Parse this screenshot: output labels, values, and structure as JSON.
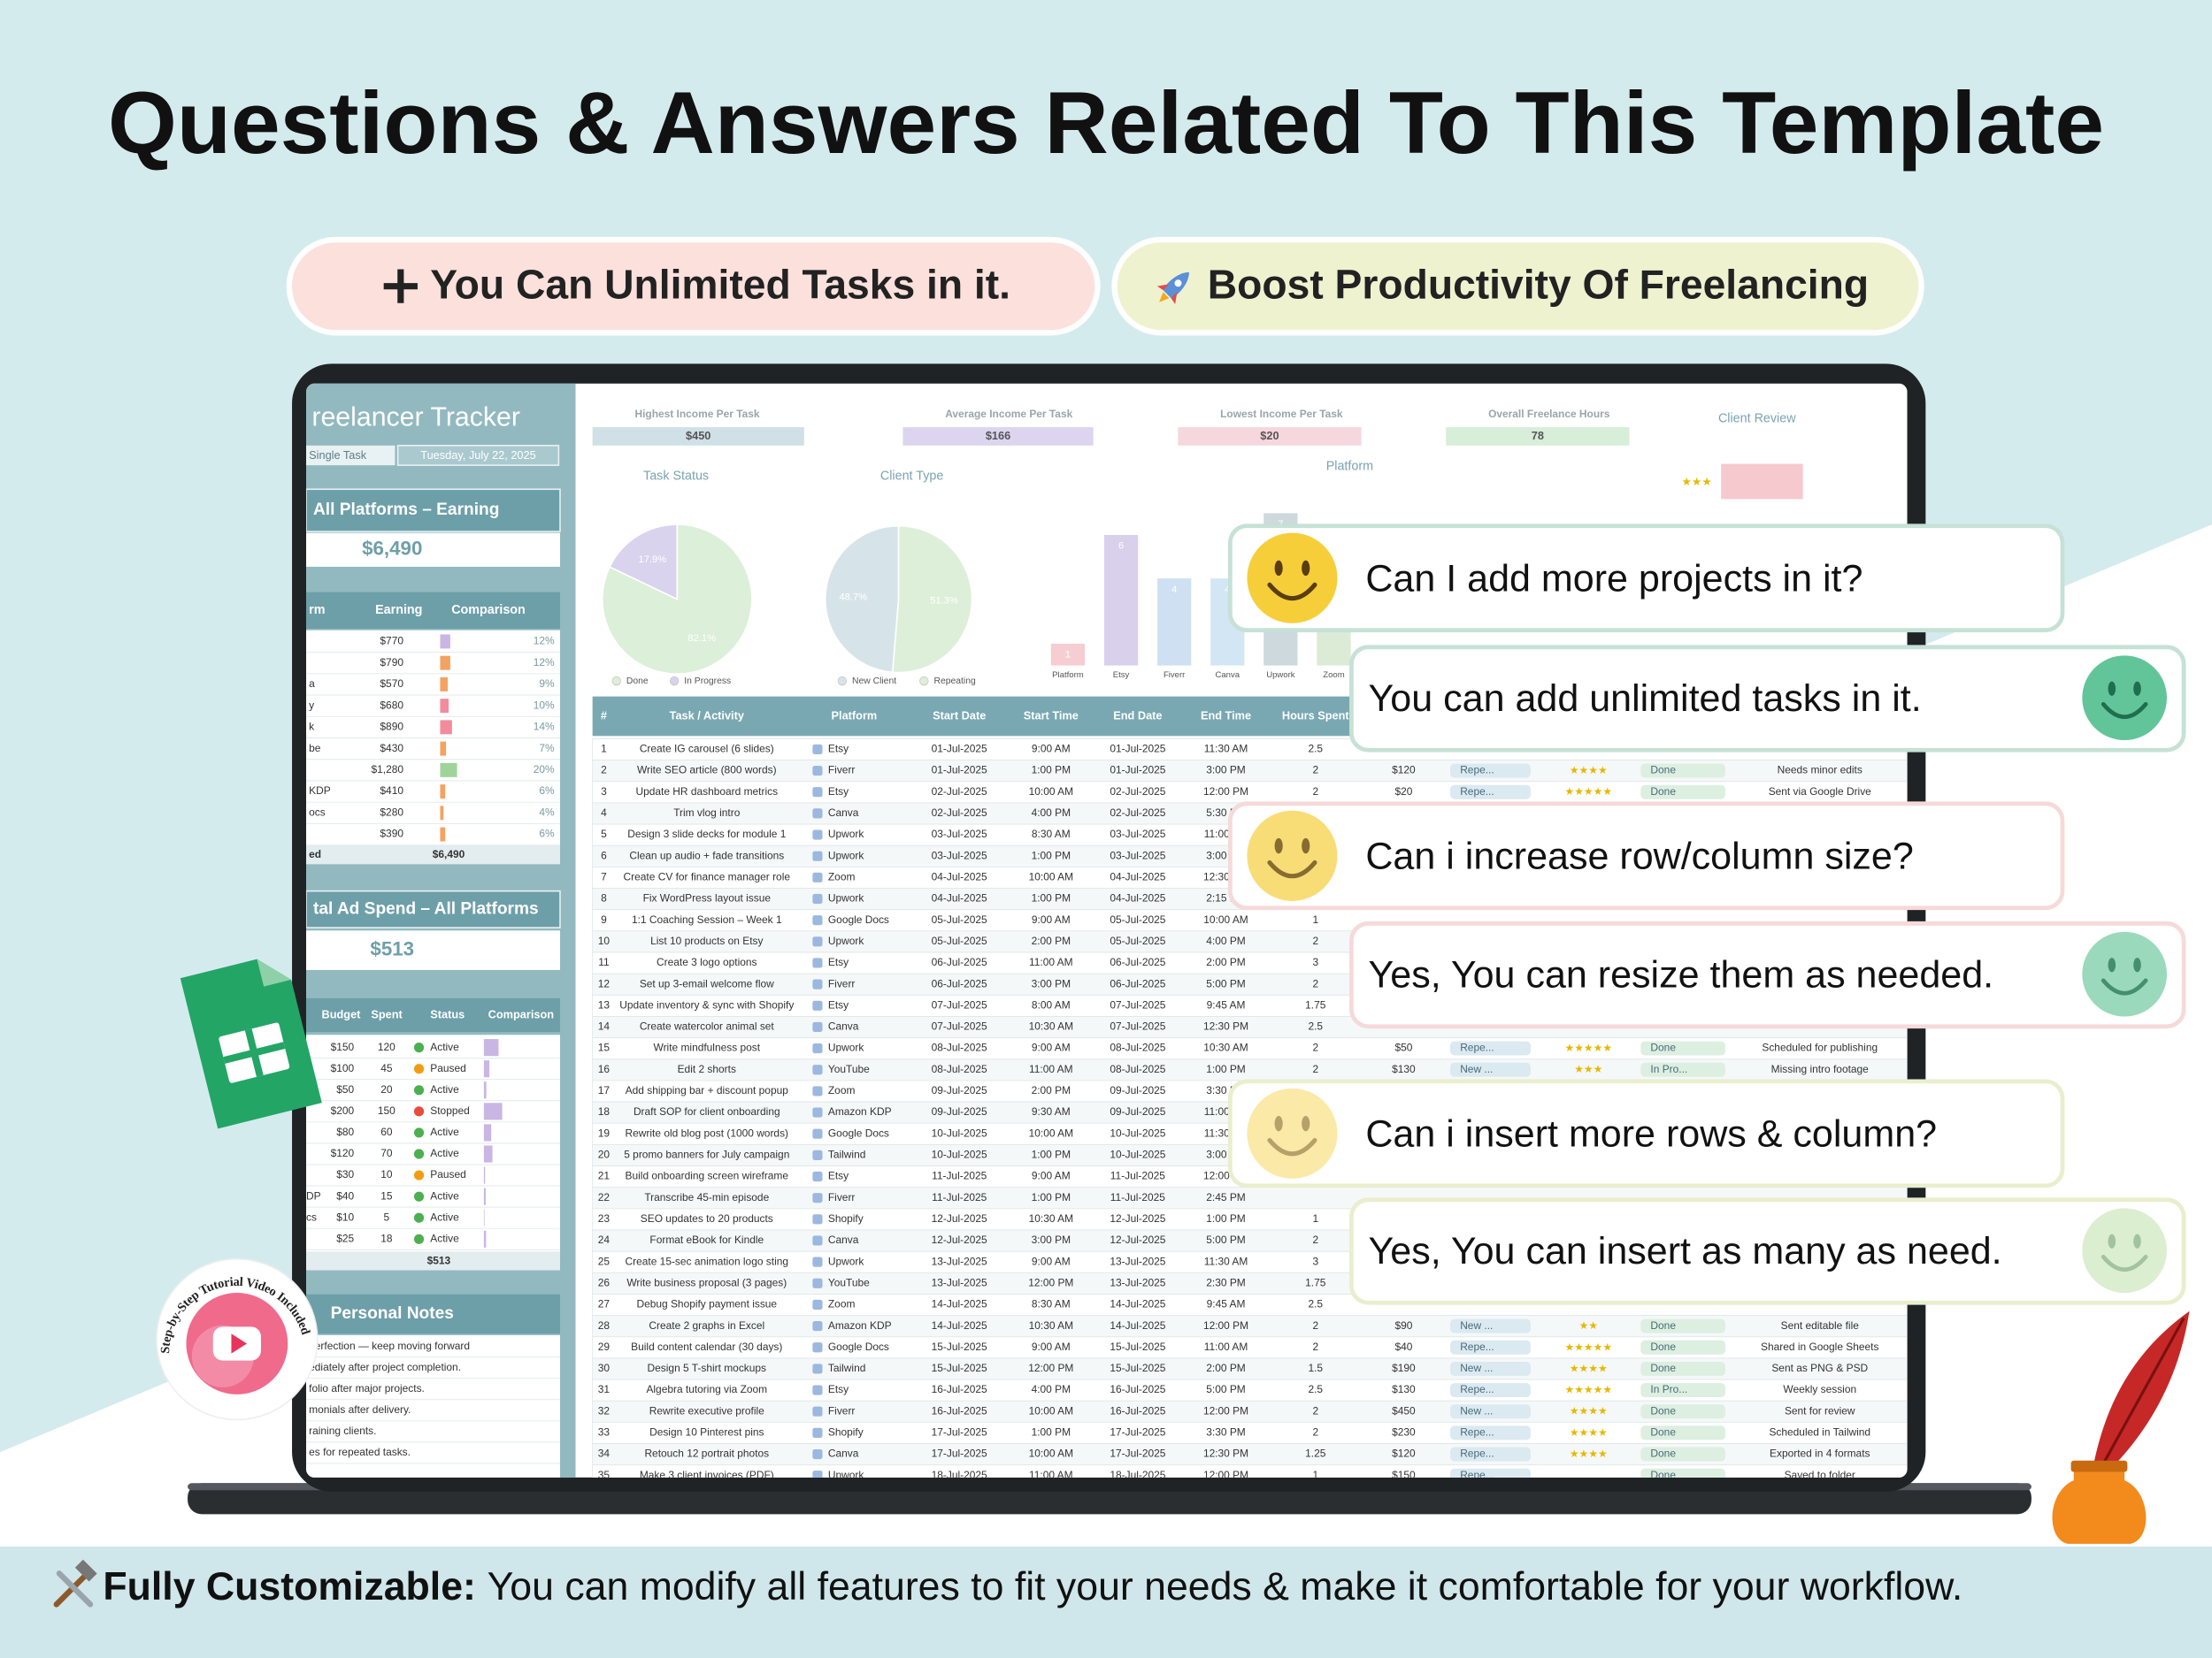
{
  "header": {
    "title": "Questions & Answers Related To This Template"
  },
  "pills": [
    "You Can Unlimited Tasks in it.",
    "Boost Productivity Of Freelancing"
  ],
  "qa": [
    {
      "question": "Can I add more projects in it?",
      "answer": "You can add unlimited tasks in it."
    },
    {
      "question": "Can i increase row/column size?",
      "answer": "Yes, You can resize them as needed."
    },
    {
      "question": "Can i insert more rows & column?",
      "answer": "Yes, You can insert as many as need."
    }
  ],
  "badge": "Step-by-Step Tutorial Video Included",
  "footer": {
    "label": "Fully Customizable:",
    "text": "You can modify all features to fit your needs & make it comfortable for your workflow."
  },
  "sheet": {
    "title": "reelancer Tracker",
    "mode": "Single Task",
    "date": "Tuesday, July 22, 2025",
    "cards": [
      {
        "label": "Highest Income Per Task",
        "value": "$450",
        "color": "#cfe0e6"
      },
      {
        "label": "Average Income Per Task",
        "value": "$166",
        "color": "#ddd5ef"
      },
      {
        "label": "Lowest Income Per Task",
        "value": "$20",
        "color": "#f6d7dd"
      },
      {
        "label": "Overall Freelance Hours",
        "value": 78,
        "color": "#d7eed8"
      }
    ],
    "review": {
      "title": "Client Review",
      "stars": "★★★"
    },
    "task_status": {
      "type": "pie",
      "title": "Task Status",
      "categories": [
        "Done",
        "In Progress"
      ],
      "values": [
        82.1,
        17.9
      ],
      "value_labels": [
        "82.1%",
        "17.9%"
      ],
      "colors": [
        "#dcefd9",
        "#d9d3ee"
      ],
      "direction": "clockwise"
    },
    "client_type": {
      "type": "pie",
      "title": "Client Type",
      "categories": [
        "New Client",
        "Repeating"
      ],
      "values": [
        48.7,
        51.3
      ],
      "value_labels": [
        "48.7%",
        "51.3%"
      ],
      "colors": [
        "#d6e4ea",
        "#ddefd8"
      ],
      "direction": "counterclockwise"
    },
    "platform": {
      "type": "bar",
      "title": "Platform",
      "categories": [
        "Platform",
        "Etsy",
        "Fiverr",
        "Canva",
        "Upwork",
        "Zoom"
      ],
      "values": [
        1,
        6,
        4,
        4,
        7,
        3
      ],
      "colors": [
        "#f6cdd3",
        "#d9d0ec",
        "#cfe0f2",
        "#d3e6f3",
        "#cdd9dd",
        "#dcebd5"
      ],
      "ylim": [
        0,
        7
      ]
    },
    "earning": {
      "title": "All Platforms – Earning",
      "total": "$6,490",
      "headers": [
        "rm",
        "Earning",
        "Comparison"
      ],
      "rows": [
        {
          "name": null,
          "earning": "$770",
          "share": 12,
          "share_label": "12%",
          "color": "#c9b6e4"
        },
        {
          "name": null,
          "earning": "$790",
          "share": 12,
          "share_label": "12%",
          "color": "#f4a261"
        },
        {
          "name": "a",
          "earning": "$570",
          "share": 9,
          "share_label": "9%",
          "color": "#f4a261"
        },
        {
          "name": "y",
          "earning": "$680",
          "share": 10,
          "share_label": "10%",
          "color": "#f28b9b"
        },
        {
          "name": "k",
          "earning": "$890",
          "share": 14,
          "share_label": "14%",
          "color": "#f28b9b"
        },
        {
          "name": "be",
          "earning": "$430",
          "share": 7,
          "share_label": "7%",
          "color": "#f4a261"
        },
        {
          "name": null,
          "earning": "$1,280",
          "share": 20,
          "share_label": "20%",
          "color": "#9fd39a"
        },
        {
          "name": "KDP",
          "earning": "$410",
          "share": 6,
          "share_label": "6%",
          "color": "#f4a261"
        },
        {
          "name": "ocs",
          "earning": "$280",
          "share": 4,
          "share_label": "4%",
          "color": "#f4a261"
        },
        {
          "name": null,
          "earning": "$390",
          "share": 6,
          "share_label": "6%",
          "color": "#f4a261"
        }
      ],
      "footer_label": "ed",
      "footer_total": "$6,490"
    },
    "ad_spend": {
      "title": "tal Ad Spend – All Platforms",
      "total": "$513",
      "headers": [
        "Budget",
        "Spent",
        "Status",
        "Comparison"
      ],
      "rows": [
        {
          "name": null,
          "budget": "$150",
          "spent": 120,
          "status": "Active",
          "status_color": "#4caf50"
        },
        {
          "name": null,
          "budget": "$100",
          "spent": 45,
          "status": "Paused",
          "status_color": "#f39c12"
        },
        {
          "name": null,
          "budget": "$50",
          "spent": 20,
          "status": "Active",
          "status_color": "#4caf50"
        },
        {
          "name": null,
          "budget": "$200",
          "spent": 150,
          "status": "Stopped",
          "status_color": "#e74c3c"
        },
        {
          "name": null,
          "budget": "$80",
          "spent": 60,
          "status": "Active",
          "status_color": "#4caf50"
        },
        {
          "name": null,
          "budget": "$120",
          "spent": 70,
          "status": "Active",
          "status_color": "#4caf50"
        },
        {
          "name": null,
          "budget": "$30",
          "spent": 10,
          "status": "Paused",
          "status_color": "#f39c12"
        },
        {
          "name": "DP",
          "budget": "$40",
          "spent": 15,
          "status": "Active",
          "status_color": "#4caf50"
        },
        {
          "name": "cs",
          "budget": "$10",
          "spent": 5,
          "status": "Active",
          "status_color": "#4caf50"
        },
        {
          "name": null,
          "budget": "$25",
          "spent": 18,
          "status": "Active",
          "status_color": "#4caf50"
        }
      ],
      "footer_total": "$513"
    },
    "notes": {
      "title": "Personal Notes",
      "lines": [
        "perfection — keep moving forward",
        "ediately after project completion.",
        "folio after major projects.",
        "monials after delivery.",
        "raining clients.",
        "es for repeated tasks."
      ]
    },
    "tasks": {
      "columns": [
        "#",
        "Task / Activity",
        "Platform",
        "Start Date",
        "Start Time",
        "End Date",
        "End Time",
        "Hours Spent"
      ],
      "rows": [
        [
          1,
          "Create IG carousel (6 slides)",
          "Etsy",
          "01-Jul-2025",
          "9:00 AM",
          "01-Jul-2025",
          "11:30 AM",
          2.5,
          null,
          null,
          null,
          null,
          null
        ],
        [
          2,
          "Write SEO article (800 words)",
          "Fiverr",
          "01-Jul-2025",
          "1:00 PM",
          "01-Jul-2025",
          "3:00 PM",
          2,
          "$120",
          "Repe...",
          "★★★★",
          "Done",
          "Needs minor edits"
        ],
        [
          3,
          "Update HR dashboard metrics",
          "Etsy",
          "02-Jul-2025",
          "10:00 AM",
          "02-Jul-2025",
          "12:00 PM",
          2,
          "$20",
          "Repe...",
          "★★★★★",
          "Done",
          "Sent via Google Drive"
        ],
        [
          4,
          "Trim vlog intro",
          "Canva",
          "02-Jul-2025",
          "4:00 PM",
          "02-Jul-2025",
          "5:30 PM",
          null,
          null,
          null,
          null,
          null,
          null
        ],
        [
          5,
          "Design 3 slide decks for module 1",
          "Upwork",
          "03-Jul-2025",
          "8:30 AM",
          "03-Jul-2025",
          "11:00 AM",
          null,
          null,
          null,
          null,
          null,
          null
        ],
        [
          6,
          "Clean up audio + fade transitions",
          "Upwork",
          "03-Jul-2025",
          "1:00 PM",
          "03-Jul-2025",
          "3:00 PM",
          null,
          null,
          null,
          null,
          null,
          null
        ],
        [
          7,
          "Create CV for finance manager role",
          "Zoom",
          "04-Jul-2025",
          "10:00 AM",
          "04-Jul-2025",
          "12:30 PM",
          null,
          null,
          null,
          null,
          null,
          null
        ],
        [
          8,
          "Fix WordPress layout issue",
          "Upwork",
          "04-Jul-2025",
          "1:00 PM",
          "04-Jul-2025",
          "2:15 PM",
          null,
          null,
          null,
          null,
          null,
          null
        ],
        [
          9,
          "1:1 Coaching Session – Week 1",
          "Google Docs",
          "05-Jul-2025",
          "9:00 AM",
          "05-Jul-2025",
          "10:00 AM",
          1,
          null,
          null,
          null,
          null,
          null
        ],
        [
          10,
          "List 10 products on Etsy",
          "Upwork",
          "05-Jul-2025",
          "2:00 PM",
          "05-Jul-2025",
          "4:00 PM",
          2,
          null,
          null,
          null,
          null,
          null
        ],
        [
          11,
          "Create 3 logo options",
          "Etsy",
          "06-Jul-2025",
          "11:00 AM",
          "06-Jul-2025",
          "2:00 PM",
          3,
          null,
          null,
          null,
          null,
          null
        ],
        [
          12,
          "Set up 3-email welcome flow",
          "Fiverr",
          "06-Jul-2025",
          "3:00 PM",
          "06-Jul-2025",
          "5:00 PM",
          2,
          null,
          null,
          null,
          null,
          null
        ],
        [
          13,
          "Update inventory & sync with Shopify",
          "Etsy",
          "07-Jul-2025",
          "8:00 AM",
          "07-Jul-2025",
          "9:45 AM",
          1.75,
          null,
          null,
          null,
          null,
          null
        ],
        [
          14,
          "Create watercolor animal set",
          "Canva",
          "07-Jul-2025",
          "10:30 AM",
          "07-Jul-2025",
          "12:30 PM",
          2.5,
          null,
          null,
          null,
          null,
          null
        ],
        [
          15,
          "Write mindfulness post",
          "Upwork",
          "08-Jul-2025",
          "9:00 AM",
          "08-Jul-2025",
          "10:30 AM",
          2,
          "$50",
          "Repe...",
          "★★★★★",
          "Done",
          "Scheduled for publishing"
        ],
        [
          16,
          "Edit 2 shorts",
          "YouTube",
          "08-Jul-2025",
          "11:00 AM",
          "08-Jul-2025",
          "1:00 PM",
          2,
          "$130",
          "New ...",
          "★★★",
          "In Pro...",
          "Missing intro footage"
        ],
        [
          17,
          "Add shipping bar + discount popup",
          "Zoom",
          "09-Jul-2025",
          "2:00 PM",
          "09-Jul-2025",
          "3:30 PM",
          null,
          null,
          null,
          null,
          null,
          null
        ],
        [
          18,
          "Draft SOP for client onboarding",
          "Amazon KDP",
          "09-Jul-2025",
          "9:30 AM",
          "09-Jul-2025",
          "11:00 AM",
          null,
          null,
          null,
          null,
          null,
          null
        ],
        [
          19,
          "Rewrite old blog post (1000 words)",
          "Google Docs",
          "10-Jul-2025",
          "10:00 AM",
          "10-Jul-2025",
          "11:30 AM",
          null,
          null,
          null,
          null,
          null,
          null
        ],
        [
          20,
          "5 promo banners for July campaign",
          "Tailwind",
          "10-Jul-2025",
          "1:00 PM",
          "10-Jul-2025",
          "3:00 PM",
          null,
          null,
          null,
          null,
          null,
          null
        ],
        [
          21,
          "Build onboarding screen wireframe",
          "Etsy",
          "11-Jul-2025",
          "9:00 AM",
          "11-Jul-2025",
          "12:00 PM",
          null,
          null,
          null,
          null,
          null,
          null
        ],
        [
          22,
          "Transcribe 45-min episode",
          "Fiverr",
          "11-Jul-2025",
          "1:00 PM",
          "11-Jul-2025",
          "2:45 PM",
          null,
          null,
          null,
          null,
          null,
          null
        ],
        [
          23,
          "SEO updates to 20 products",
          "Shopify",
          "12-Jul-2025",
          "10:30 AM",
          "12-Jul-2025",
          "1:00 PM",
          1,
          null,
          null,
          null,
          null,
          null
        ],
        [
          24,
          "Format eBook for Kindle",
          "Canva",
          "12-Jul-2025",
          "3:00 PM",
          "12-Jul-2025",
          "5:00 PM",
          2,
          null,
          null,
          null,
          null,
          null
        ],
        [
          25,
          "Create 15-sec animation logo sting",
          "Upwork",
          "13-Jul-2025",
          "9:00 AM",
          "13-Jul-2025",
          "11:30 AM",
          3,
          null,
          null,
          null,
          null,
          null
        ],
        [
          26,
          "Write business proposal (3 pages)",
          "YouTube",
          "13-Jul-2025",
          "12:00 PM",
          "13-Jul-2025",
          "2:30 PM",
          1.75,
          null,
          null,
          null,
          null,
          null
        ],
        [
          27,
          "Debug Shopify payment issue",
          "Zoom",
          "14-Jul-2025",
          "8:30 AM",
          "14-Jul-2025",
          "9:45 AM",
          2.5,
          null,
          null,
          null,
          null,
          null
        ],
        [
          28,
          "Create 2 graphs in Excel",
          "Amazon KDP",
          "14-Jul-2025",
          "10:30 AM",
          "14-Jul-2025",
          "12:00 PM",
          2,
          "$90",
          "New ...",
          "★★",
          "Done",
          "Sent editable file"
        ],
        [
          29,
          "Build content calendar (30 days)",
          "Google Docs",
          "15-Jul-2025",
          "9:00 AM",
          "15-Jul-2025",
          "11:00 AM",
          2,
          "$40",
          "Repe...",
          "★★★★★",
          "Done",
          "Shared in Google Sheets"
        ],
        [
          30,
          "Design 5 T-shirt mockups",
          "Tailwind",
          "15-Jul-2025",
          "12:00 PM",
          "15-Jul-2025",
          "2:00 PM",
          1.5,
          "$190",
          "New ...",
          "★★★★",
          "Done",
          "Sent as PNG & PSD"
        ],
        [
          31,
          "Algebra tutoring via Zoom",
          "Etsy",
          "16-Jul-2025",
          "4:00 PM",
          "16-Jul-2025",
          "5:00 PM",
          2.5,
          "$130",
          "Repe...",
          "★★★★★",
          "In Pro...",
          "Weekly session"
        ],
        [
          32,
          "Rewrite executive profile",
          "Fiverr",
          "16-Jul-2025",
          "10:00 AM",
          "16-Jul-2025",
          "12:00 PM",
          2,
          "$450",
          "New ...",
          "★★★★",
          "Done",
          "Sent for review"
        ],
        [
          33,
          "Design 10 Pinterest pins",
          "Shopify",
          "17-Jul-2025",
          "1:00 PM",
          "17-Jul-2025",
          "3:30 PM",
          2,
          "$230",
          "Repe...",
          "★★★★",
          "Done",
          "Scheduled in Tailwind"
        ],
        [
          34,
          "Retouch 12 portrait photos",
          "Canva",
          "17-Jul-2025",
          "10:00 AM",
          "17-Jul-2025",
          "12:30 PM",
          1.25,
          "$120",
          "Repe...",
          "★★★★",
          "Done",
          "Exported in 4 formats"
        ],
        [
          35,
          "Make 3 client invoices (PDF)",
          "Upwork",
          "18-Jul-2025",
          "11:00 AM",
          "18-Jul-2025",
          "12:00 PM",
          1,
          "$150",
          "Repe...",
          null,
          "Done",
          "Saved to folder"
        ]
      ]
    }
  }
}
